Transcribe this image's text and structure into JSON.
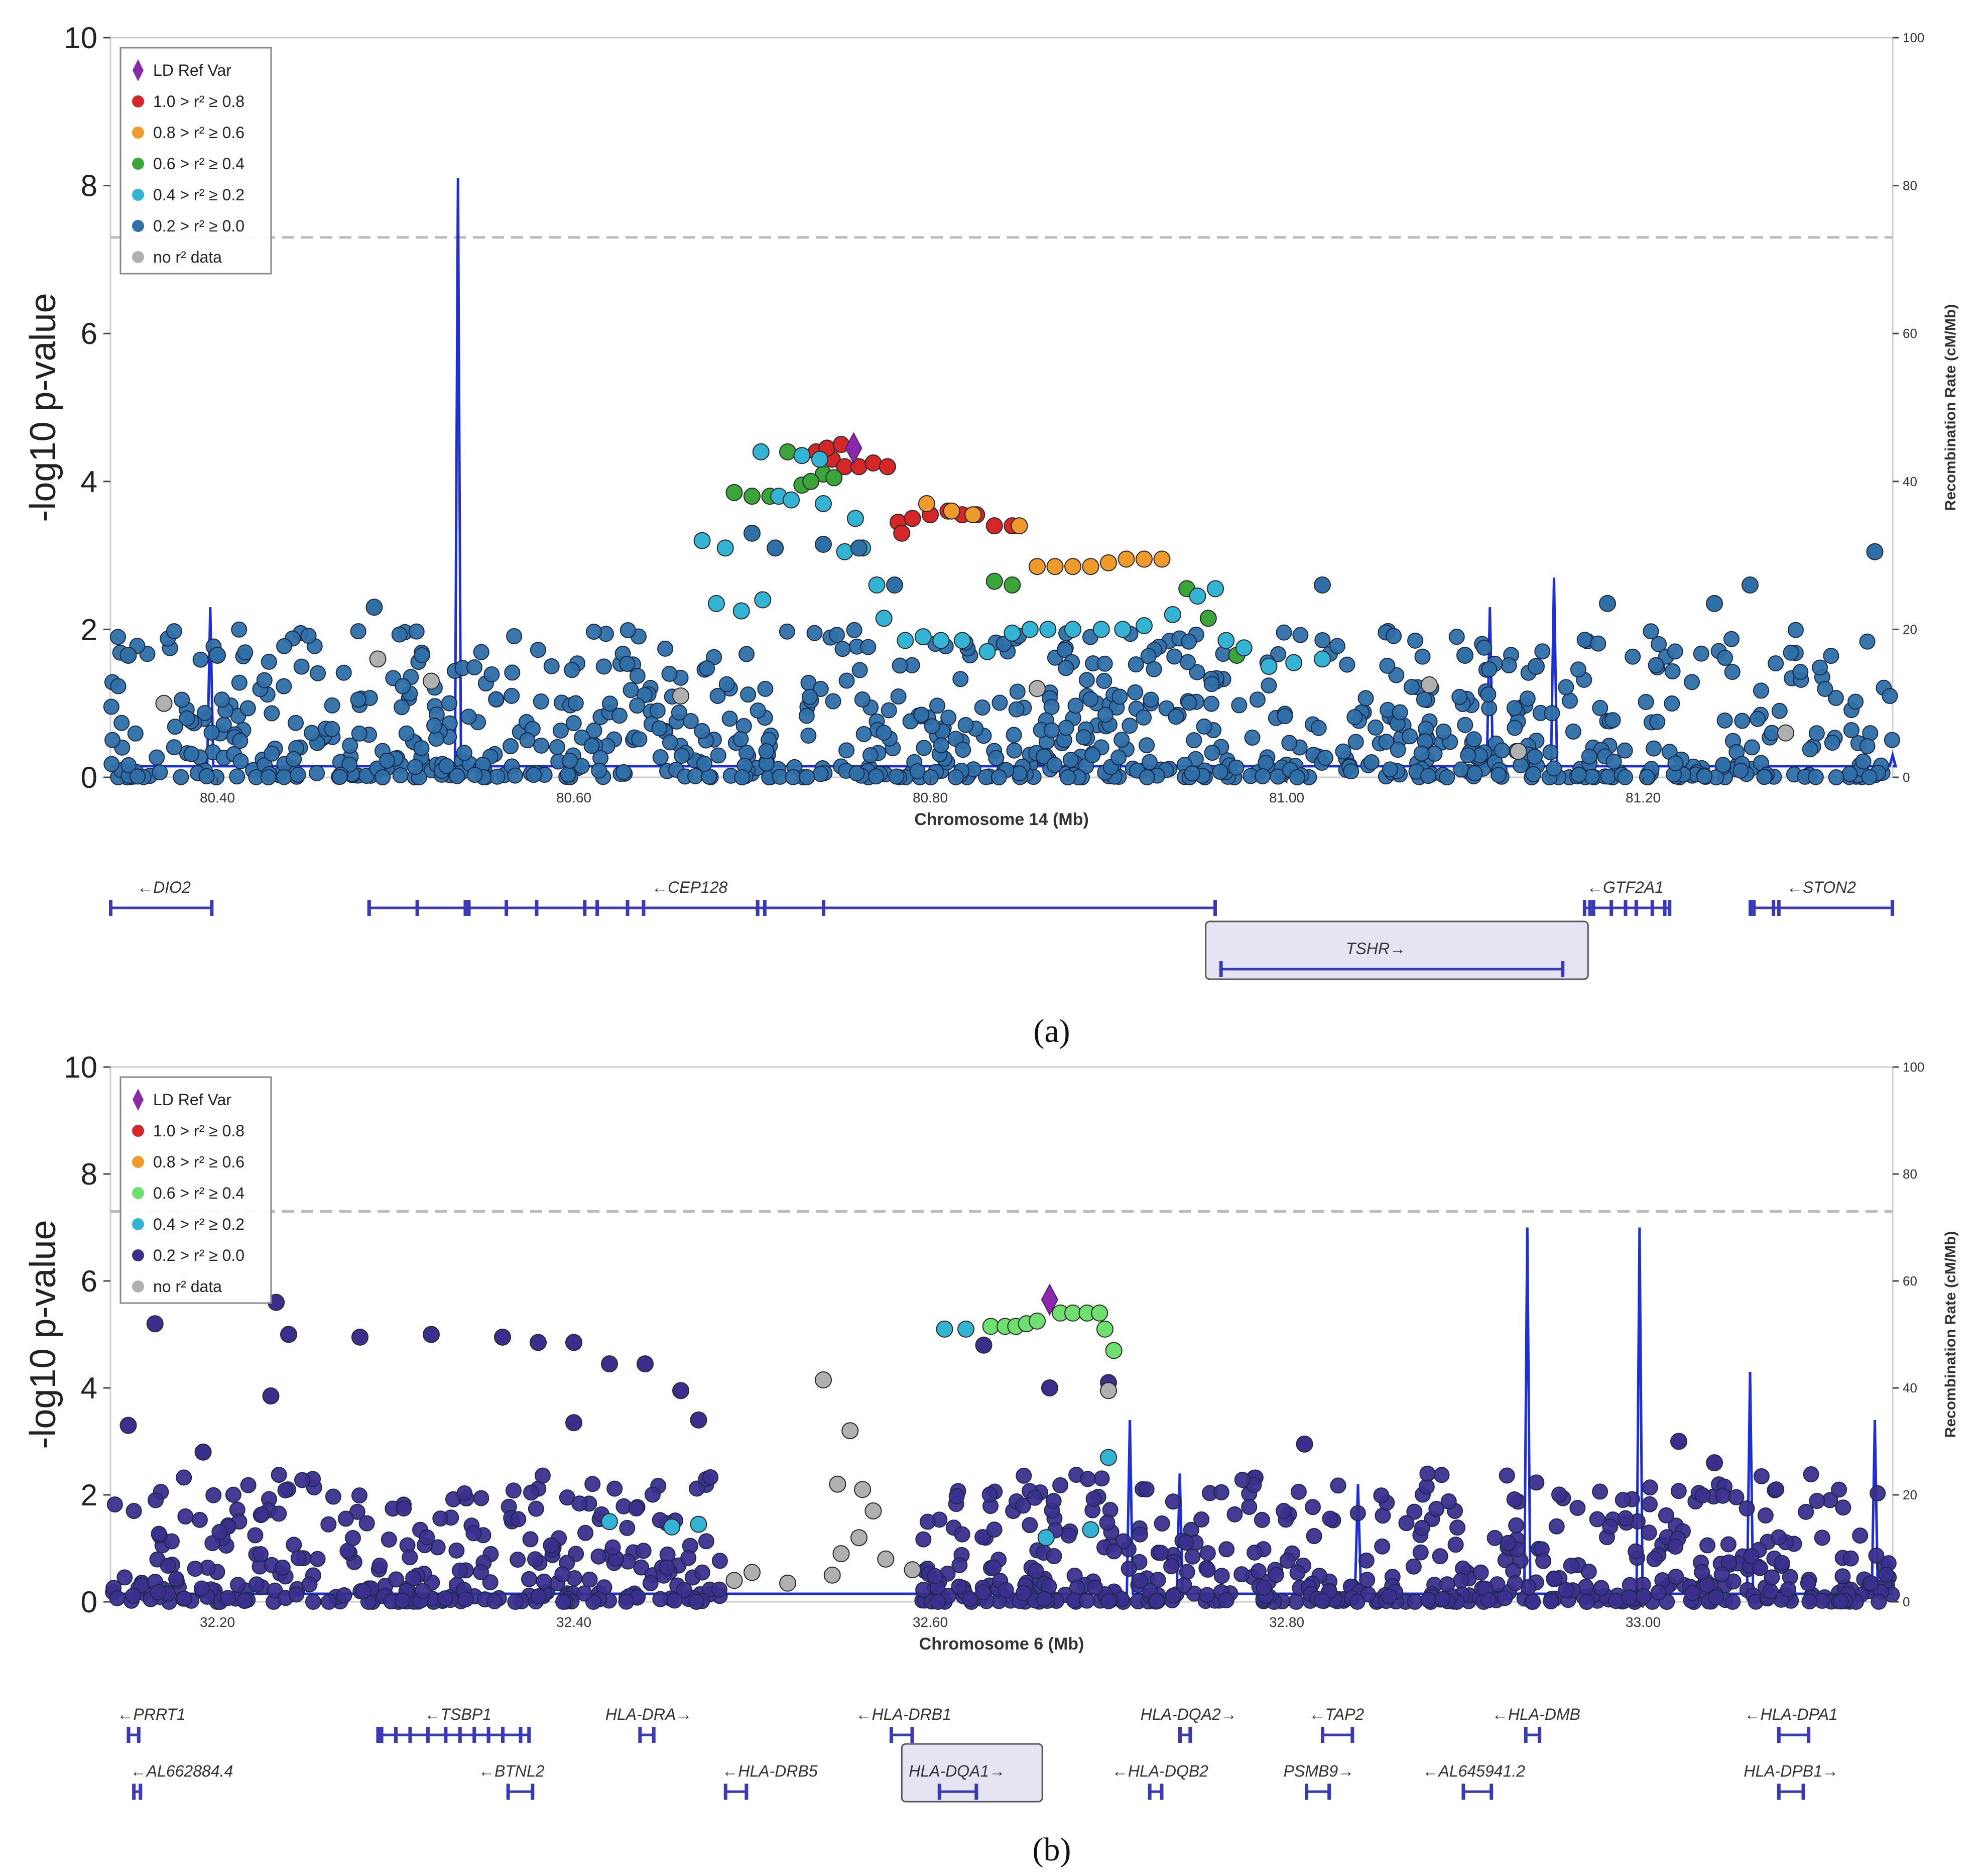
{
  "colors": {
    "ref": "#8a2aa8",
    "r2_08": "#d62728",
    "r2_06": "#f09a2e",
    "r2_04a": "#3aa63a",
    "r2_04b": "#6fe06f",
    "r2_02": "#34b4d4",
    "r2_00a": "#2e6fa8",
    "r2_00b": "#3b2f8e",
    "nodata": "#b0b0b0",
    "recomb": "#1f2fd6",
    "gene": "#3a3ab8",
    "highlight_fill": "#e4e4f2"
  },
  "chart_data": [
    {
      "type": "scatter",
      "panel_label": "(a)",
      "ylabel": "-log10 p-value",
      "xlabel": "Chromosome 14 (Mb)",
      "right_ylabel": "Recombination Rate (cM/Mb)",
      "xlim": [
        80.34,
        81.34
      ],
      "ylim": [
        0,
        10
      ],
      "right_ylim": [
        0,
        100
      ],
      "x_ticks": [
        "80.40",
        "80.60",
        "80.80",
        "81.00",
        "81.20"
      ],
      "x_tick_values": [
        80.4,
        80.6,
        80.8,
        81.0,
        81.2
      ],
      "y_ticks": [
        "0",
        "2",
        "4",
        "6",
        "8",
        "10"
      ],
      "right_ticks": [
        "0",
        "20",
        "40",
        "60",
        "80",
        "100"
      ],
      "significance_line": 7.3,
      "legend": [
        "LD Ref Var",
        "1.0 > r² ≥ 0.8",
        "0.8 > r² ≥ 0.6",
        "0.6 > r² ≥ 0.4",
        "0.4 > r² ≥ 0.2",
        "0.2 > r² ≥ 0.0",
        "no r² data"
      ],
      "lead_variant": {
        "x": 80.757,
        "y": 4.45
      },
      "series": [
        {
          "name": "1.0 > r² ≥ 0.8",
          "points": [
            [
              80.736,
              4.4
            ],
            [
              80.745,
              4.3
            ],
            [
              80.752,
              4.2
            ],
            [
              80.76,
              4.2
            ],
            [
              80.768,
              4.25
            ],
            [
              80.776,
              4.2
            ],
            [
              80.742,
              4.45
            ],
            [
              80.75,
              4.5
            ],
            [
              80.782,
              3.45
            ],
            [
              80.79,
              3.5
            ],
            [
              80.8,
              3.55
            ],
            [
              80.81,
              3.6
            ],
            [
              80.818,
              3.55
            ],
            [
              80.826,
              3.55
            ],
            [
              80.836,
              3.4
            ],
            [
              80.846,
              3.4
            ],
            [
              80.784,
              3.3
            ]
          ]
        },
        {
          "name": "0.8 > r² ≥ 0.6",
          "points": [
            [
              80.798,
              3.7
            ],
            [
              80.812,
              3.6
            ],
            [
              80.824,
              3.55
            ],
            [
              80.85,
              3.4
            ],
            [
              80.86,
              2.85
            ],
            [
              80.87,
              2.85
            ],
            [
              80.88,
              2.85
            ],
            [
              80.89,
              2.85
            ],
            [
              80.9,
              2.9
            ],
            [
              80.91,
              2.95
            ],
            [
              80.92,
              2.95
            ],
            [
              80.93,
              2.95
            ]
          ]
        },
        {
          "name": "0.6 > r² ≥ 0.4",
          "points": [
            [
              80.69,
              3.85
            ],
            [
              80.7,
              3.8
            ],
            [
              80.71,
              3.8
            ],
            [
              80.72,
              4.4
            ],
            [
              80.728,
              3.95
            ],
            [
              80.74,
              4.1
            ],
            [
              80.746,
              4.05
            ],
            [
              80.733,
              4.0
            ],
            [
              80.836,
              2.65
            ],
            [
              80.846,
              2.6
            ],
            [
              80.944,
              2.55
            ],
            [
              80.956,
              2.15
            ],
            [
              80.972,
              1.65
            ]
          ]
        },
        {
          "name": "0.4 > r² ≥ 0.2",
          "points": [
            [
              80.672,
              3.2
            ],
            [
              80.685,
              3.1
            ],
            [
              80.705,
              4.4
            ],
            [
              80.715,
              3.8
            ],
            [
              80.728,
              4.35
            ],
            [
              80.738,
              4.3
            ],
            [
              80.722,
              3.75
            ],
            [
              80.74,
              3.7
            ],
            [
              80.758,
              3.5
            ],
            [
              80.77,
              2.6
            ],
            [
              80.774,
              2.15
            ],
            [
              80.786,
              1.85
            ],
            [
              80.796,
              1.9
            ],
            [
              80.806,
              1.85
            ],
            [
              80.818,
              1.85
            ],
            [
              80.832,
              1.7
            ],
            [
              80.846,
              1.95
            ],
            [
              80.856,
              2.0
            ],
            [
              80.866,
              2.0
            ],
            [
              80.88,
              2.0
            ],
            [
              80.896,
              2.0
            ],
            [
              80.908,
              2.0
            ],
            [
              80.92,
              2.05
            ],
            [
              80.936,
              2.2
            ],
            [
              80.95,
              2.45
            ],
            [
              80.96,
              2.55
            ],
            [
              80.966,
              1.85
            ],
            [
              80.976,
              1.75
            ],
            [
              80.99,
              1.5
            ],
            [
              81.004,
              1.55
            ],
            [
              81.02,
              1.6
            ],
            [
              80.752,
              3.05
            ],
            [
              80.762,
              3.1
            ],
            [
              80.68,
              2.35
            ],
            [
              80.694,
              2.25
            ],
            [
              80.706,
              2.4
            ]
          ]
        },
        {
          "name": "0.2 > r² ≥ 0.0",
          "points": [
            [
              80.488,
              2.3
            ],
            [
              80.7,
              3.3
            ],
            [
              80.713,
              3.1
            ],
            [
              80.74,
              3.15
            ],
            [
              80.76,
              3.1
            ],
            [
              80.78,
              2.6
            ],
            [
              81.02,
              2.6
            ],
            [
              81.33,
              3.05
            ],
            [
              81.26,
              2.6
            ],
            [
              81.24,
              2.35
            ],
            [
              81.18,
              2.35
            ],
            [
              81.14,
              1.5
            ],
            [
              81.1,
              1.65
            ],
            [
              80.4,
              1.65
            ],
            [
              80.35,
              1.65
            ]
          ]
        },
        {
          "name": "no r² data",
          "points": [
            [
              80.37,
              1.0
            ],
            [
              80.49,
              1.6
            ],
            [
              80.52,
              1.3
            ],
            [
              80.66,
              1.1
            ],
            [
              80.86,
              1.2
            ],
            [
              81.08,
              1.25
            ],
            [
              81.13,
              0.35
            ],
            [
              81.28,
              0.6
            ]
          ]
        }
      ],
      "recombination_peaks": [
        {
          "x": 80.396,
          "rate": 23
        },
        {
          "x": 80.535,
          "rate": 81
        },
        {
          "x": 81.114,
          "rate": 23
        },
        {
          "x": 81.15,
          "rate": 27
        },
        {
          "x": 81.34,
          "rate": 3
        }
      ],
      "genes": [
        {
          "label": "←DIO2",
          "start": 80.34,
          "end": 80.397,
          "row": 0,
          "label_x": 80.37
        },
        {
          "label": "←CEP128",
          "start": 80.485,
          "end": 80.96,
          "row": 0,
          "label_x": 80.665,
          "exons": [
            80.485,
            80.512,
            80.539,
            80.541,
            80.562,
            80.579,
            80.606,
            80.613,
            80.63,
            80.639,
            80.703,
            80.707,
            80.74
          ]
        },
        {
          "label": "←GTF2A1",
          "start": 81.167,
          "end": 81.215,
          "row": 0,
          "label_x": 81.19,
          "exons": [
            81.17,
            81.172,
            81.182,
            81.19,
            81.196,
            81.205,
            81.212
          ]
        },
        {
          "label": "←STON2",
          "start": 81.26,
          "end": 81.34,
          "row": 0,
          "label_x": 81.3,
          "exons": [
            81.262,
            81.273,
            81.276
          ]
        },
        {
          "label": "TSHR→",
          "start": 80.963,
          "end": 81.155,
          "row": 1,
          "label_x": 81.05,
          "highlight": true
        }
      ]
    },
    {
      "type": "scatter",
      "panel_label": "(b)",
      "ylabel": "-log10 p-value",
      "xlabel": "Chromosome 6 (Mb)",
      "right_ylabel": "Recombination Rate (cM/Mb)",
      "xlim": [
        32.14,
        33.14
      ],
      "ylim": [
        0,
        10
      ],
      "right_ylim": [
        0,
        100
      ],
      "x_ticks": [
        "32.20",
        "32.40",
        "32.60",
        "32.80",
        "33.00"
      ],
      "x_tick_values": [
        32.2,
        32.4,
        32.6,
        32.8,
        33.0
      ],
      "y_ticks": [
        "0",
        "2",
        "4",
        "6",
        "8",
        "10"
      ],
      "right_ticks": [
        "0",
        "20",
        "40",
        "60",
        "80",
        "100"
      ],
      "significance_line": 7.3,
      "legend": [
        "LD Ref Var",
        "1.0 > r² ≥ 0.8",
        "0.8 > r² ≥ 0.6",
        "0.6 > r² ≥ 0.4",
        "0.4 > r² ≥ 0.2",
        "0.2 > r² ≥ 0.0",
        "no r² data"
      ],
      "lead_variant": {
        "x": 32.667,
        "y": 5.65
      },
      "series": [
        {
          "name": "0.6 > r² ≥ 0.4",
          "points": [
            [
              32.634,
              5.15
            ],
            [
              32.642,
              5.15
            ],
            [
              32.648,
              5.15
            ],
            [
              32.654,
              5.2
            ],
            [
              32.66,
              5.25
            ],
            [
              32.673,
              5.4
            ],
            [
              32.68,
              5.4
            ],
            [
              32.688,
              5.4
            ],
            [
              32.695,
              5.4
            ],
            [
              32.698,
              5.1
            ],
            [
              32.703,
              4.7
            ]
          ]
        },
        {
          "name": "0.4 > r² ≥ 0.2",
          "points": [
            [
              32.608,
              5.1
            ],
            [
              32.62,
              5.1
            ],
            [
              32.7,
              2.7
            ],
            [
              32.47,
              1.45
            ],
            [
              32.42,
              1.5
            ],
            [
              32.455,
              1.4
            ],
            [
              32.665,
              1.2
            ],
            [
              32.69,
              1.35
            ]
          ]
        },
        {
          "name": "0.2 > r² ≥ 0.0",
          "points": [
            [
              32.15,
              3.3
            ],
            [
              32.165,
              5.2
            ],
            [
              32.192,
              2.8
            ],
            [
              32.23,
              3.85
            ],
            [
              32.233,
              5.6
            ],
            [
              32.24,
              5.0
            ],
            [
              32.28,
              4.95
            ],
            [
              32.32,
              5.0
            ],
            [
              32.36,
              4.95
            ],
            [
              32.38,
              4.85
            ],
            [
              32.4,
              4.85
            ],
            [
              32.42,
              4.45
            ],
            [
              32.44,
              4.45
            ],
            [
              32.46,
              3.95
            ],
            [
              32.47,
              3.4
            ],
            [
              32.63,
              4.8
            ],
            [
              32.667,
              4.0
            ],
            [
              32.7,
              4.1
            ],
            [
              32.81,
              2.95
            ],
            [
              33.02,
              3.0
            ],
            [
              33.04,
              2.6
            ],
            [
              32.4,
              3.35
            ]
          ]
        },
        {
          "name": "no r² data",
          "points": [
            [
              32.49,
              0.4
            ],
            [
              32.5,
              0.55
            ],
            [
              32.52,
              0.35
            ],
            [
              32.54,
              4.15
            ],
            [
              32.548,
              2.2
            ],
            [
              32.555,
              3.2
            ],
            [
              32.562,
              2.1
            ],
            [
              32.568,
              1.7
            ],
            [
              32.56,
              1.2
            ],
            [
              32.55,
              0.9
            ],
            [
              32.545,
              0.5
            ],
            [
              32.575,
              0.8
            ],
            [
              32.59,
              0.6
            ],
            [
              32.7,
              3.95
            ]
          ]
        }
      ],
      "recombination_peaks": [
        {
          "x": 32.712,
          "rate": 34
        },
        {
          "x": 32.74,
          "rate": 24
        },
        {
          "x": 32.84,
          "rate": 22
        },
        {
          "x": 32.935,
          "rate": 70
        },
        {
          "x": 32.998,
          "rate": 70
        },
        {
          "x": 33.06,
          "rate": 43
        },
        {
          "x": 33.13,
          "rate": 34
        }
      ],
      "genes": [
        {
          "label": "←PRRT1",
          "start": 32.15,
          "end": 32.156,
          "row": 0,
          "label_x": 32.163
        },
        {
          "label": "←TSBP1",
          "start": 32.29,
          "end": 32.375,
          "row": 0,
          "label_x": 32.335,
          "exons": [
            32.292,
            32.3,
            32.308,
            32.318,
            32.328,
            32.336,
            32.344,
            32.352,
            32.36,
            32.37
          ]
        },
        {
          "label": "HLA-DRA→",
          "start": 32.437,
          "end": 32.445,
          "row": 0,
          "label_x": 32.442
        },
        {
          "label": "←HLA-DRB1",
          "start": 32.578,
          "end": 32.59,
          "row": 0,
          "label_x": 32.585
        },
        {
          "label": "HLA-DQA2→",
          "start": 32.74,
          "end": 32.746,
          "row": 0,
          "label_x": 32.745
        },
        {
          "label": "←TAP2",
          "start": 32.82,
          "end": 32.837,
          "row": 0,
          "label_x": 32.828
        },
        {
          "label": "←HLA-DMB",
          "start": 32.934,
          "end": 32.942,
          "row": 0,
          "label_x": 32.94
        },
        {
          "label": "←HLA-DPA1",
          "start": 33.076,
          "end": 33.093,
          "row": 0,
          "label_x": 33.083
        },
        {
          "label": "←AL662884.4",
          "start": 32.153,
          "end": 32.157,
          "row": 1,
          "label_x": 32.18
        },
        {
          "label": "←BTNL2",
          "start": 32.363,
          "end": 32.377,
          "row": 1,
          "label_x": 32.365
        },
        {
          "label": "←HLA-DRB5",
          "start": 32.485,
          "end": 32.497,
          "row": 1,
          "label_x": 32.51
        },
        {
          "label": "HLA-DQA1→",
          "start": 32.605,
          "end": 32.626,
          "row": 1,
          "label_x": 32.615,
          "highlight": true
        },
        {
          "label": "←HLA-DQB2",
          "start": 32.723,
          "end": 32.73,
          "row": 1,
          "label_x": 32.729
        },
        {
          "label": "PSMB9→",
          "start": 32.811,
          "end": 32.824,
          "row": 1,
          "label_x": 32.818
        },
        {
          "label": "←AL645941.2",
          "start": 32.899,
          "end": 32.915,
          "row": 1,
          "label_x": 32.905
        },
        {
          "label": "HLA-DPB1→",
          "start": 33.076,
          "end": 33.09,
          "row": 1,
          "label_x": 33.083
        }
      ]
    }
  ]
}
